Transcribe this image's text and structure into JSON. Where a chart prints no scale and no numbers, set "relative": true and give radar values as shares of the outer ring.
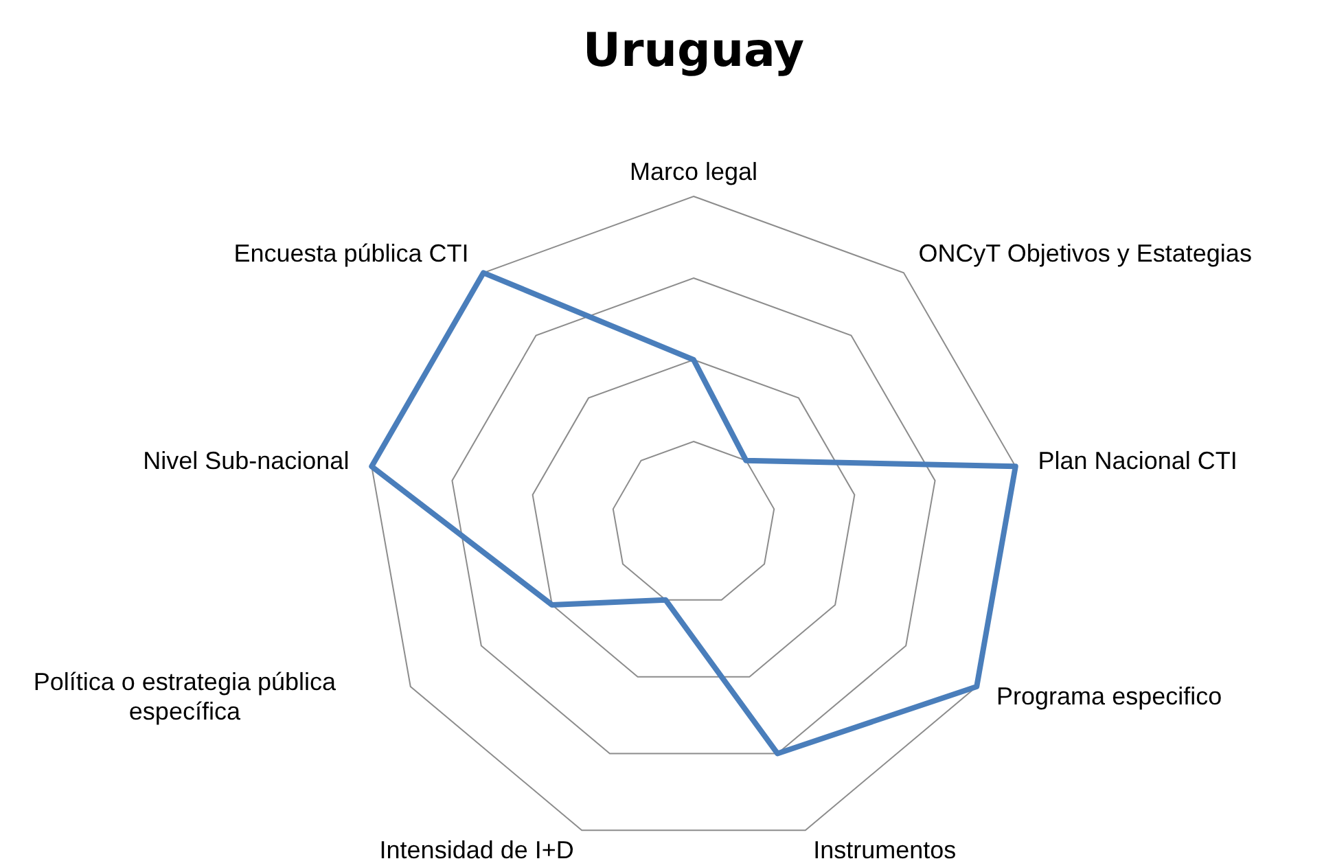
{
  "chart_data": {
    "type": "radar",
    "title": "Uruguay",
    "relative": true,
    "grid": true,
    "categories": [
      "Marco legal",
      "ONCyT Objetivos y Estategias",
      "Plan Nacional CTI",
      "Programa especifico",
      "Instrumentos",
      "Intensidad de I+D",
      "Política o estrategia pública específica",
      "Nivel Sub-nacional",
      "Encuesta pública CTI"
    ],
    "series": [
      {
        "color": "#4a7ebb",
        "values": [
          0.5,
          0.25,
          1,
          1,
          0.75,
          0.25,
          0.5,
          1,
          1
        ]
      }
    ]
  }
}
